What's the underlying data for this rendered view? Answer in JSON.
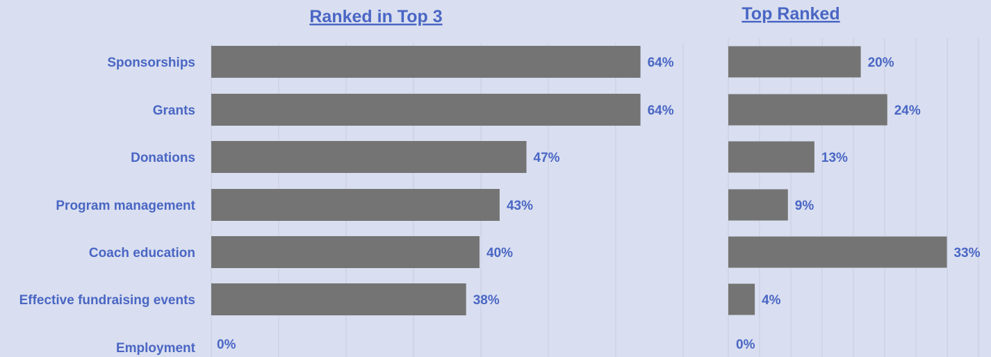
{
  "chart_data": [
    {
      "type": "bar",
      "orientation": "horizontal",
      "title": "Ranked in Top 3",
      "categories": [
        "Sponsorships",
        "Grants",
        "Donations",
        "Program management",
        "Coach education",
        "Effective fundraising events",
        "Employment"
      ],
      "values": [
        64,
        64,
        47,
        43,
        40,
        38,
        0
      ],
      "value_labels": [
        "64%",
        "64%",
        "47%",
        "43%",
        "40%",
        "38%",
        "0%"
      ],
      "xlim": [
        0,
        70
      ],
      "grid": true,
      "bar_color": "#747474",
      "text_color": "#4a66c4"
    },
    {
      "type": "bar",
      "orientation": "horizontal",
      "title": "Top Ranked",
      "categories": [
        "Sponsorships",
        "Grants",
        "Donations",
        "Program management",
        "Coach education",
        "Effective fundraising events",
        "Employment"
      ],
      "values": [
        20,
        24,
        13,
        9,
        33,
        4,
        0
      ],
      "value_labels": [
        "20%",
        "24%",
        "13%",
        "9%",
        "33%",
        "4%",
        "0%"
      ],
      "xlim": [
        0,
        35
      ],
      "grid": true,
      "bar_color": "#747474",
      "text_color": "#4a66c4"
    }
  ]
}
